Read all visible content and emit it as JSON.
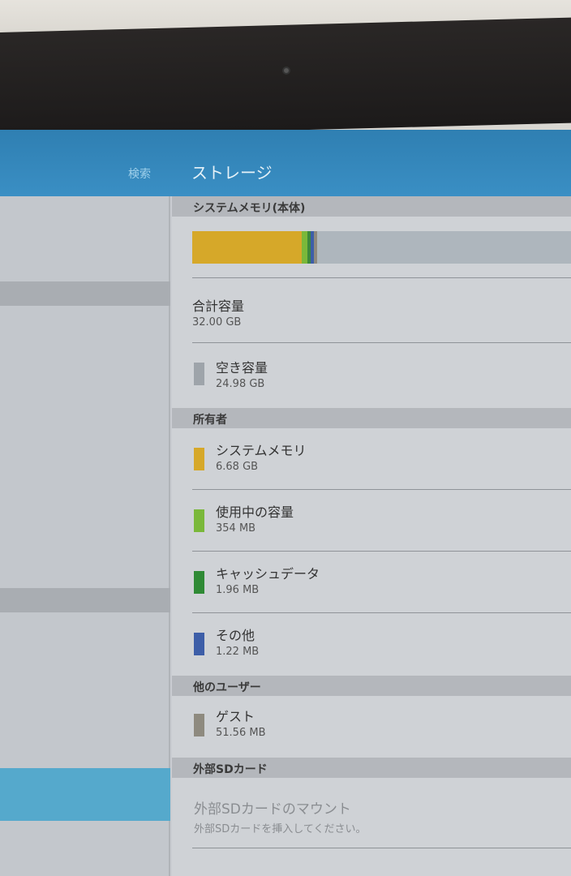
{
  "header": {
    "search_label": "検索",
    "title": "ストレージ"
  },
  "sections": {
    "system_memory": "システムメモリ(本体)",
    "owner": "所有者",
    "other_users": "他のユーザー",
    "sd_card": "外部SDカード"
  },
  "usage_bar": {
    "total_gb": 32.0,
    "segments": [
      {
        "name": "システムメモリ",
        "gb": 6.68,
        "color": "#d6a829"
      },
      {
        "name": "使用中の容量",
        "gb": 0.354,
        "color": "#7ab83a"
      },
      {
        "name": "キャッシュデータ",
        "gb": 0.002,
        "color": "#3d8a3a"
      },
      {
        "name": "その他",
        "gb": 0.001,
        "color": "#3d5ea8"
      },
      {
        "name": "ゲスト",
        "gb": 0.052,
        "color": "#8e8a7f"
      },
      {
        "name": "空き容量",
        "gb": 24.98,
        "color": "#aeb6bd"
      }
    ]
  },
  "total": {
    "label": "合計容量",
    "value": "32.00 GB"
  },
  "free": {
    "label": "空き容量",
    "value": "24.98 GB",
    "color": "#9ea4aa"
  },
  "owner_items": [
    {
      "label": "システムメモリ",
      "value": "6.68 GB",
      "color": "#d6a829"
    },
    {
      "label": "使用中の容量",
      "value": "354 MB",
      "color": "#7ab83a"
    },
    {
      "label": "キャッシュデータ",
      "value": "1.96 MB",
      "color": "#2f8a35"
    },
    {
      "label": "その他",
      "value": "1.22 MB",
      "color": "#3d5ea8"
    }
  ],
  "guest": {
    "label": "ゲスト",
    "value": "51.56 MB",
    "color": "#8e8a7f"
  },
  "sd": {
    "label": "外部SDカードのマウント",
    "sub": "外部SDカードを挿入してください。"
  }
}
